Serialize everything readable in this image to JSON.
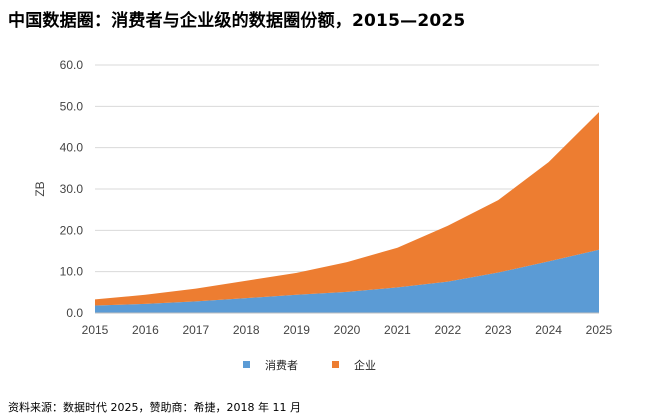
{
  "page": {
    "title": "中国数据圈：消费者与企业级的数据圈份额，2015—2025",
    "footer": "资料来源：数据时代 2025，赞助商：希捷，2018 年 11 月"
  },
  "colors": {
    "consumer": "#5b9bd5",
    "enterprise": "#ed7d31",
    "grid": "#d9d9d9",
    "axis_text": "#444444"
  },
  "chart_data": {
    "type": "area",
    "stacked": true,
    "title": "中国数据圈：消费者与企业级的数据圈份额，2015—2025",
    "xlabel": "",
    "ylabel": "ZB",
    "x": [
      "2015",
      "2016",
      "2017",
      "2018",
      "2019",
      "2020",
      "2021",
      "2022",
      "2023",
      "2024",
      "2025"
    ],
    "ylim": [
      0,
      60
    ],
    "yticks": [
      "0.0",
      "10.0",
      "20.0",
      "30.0",
      "40.0",
      "50.0",
      "60.0"
    ],
    "grid": true,
    "legend_position": "bottom",
    "series": [
      {
        "name": "消费者",
        "values": [
          1.8,
          2.2,
          2.8,
          3.6,
          4.4,
          5.1,
          6.2,
          7.6,
          9.8,
          12.5,
          15.3
        ]
      },
      {
        "name": "企业",
        "values": [
          1.5,
          2.2,
          3.1,
          4.2,
          5.3,
          7.2,
          9.6,
          13.5,
          17.5,
          24.0,
          33.3
        ]
      }
    ]
  }
}
